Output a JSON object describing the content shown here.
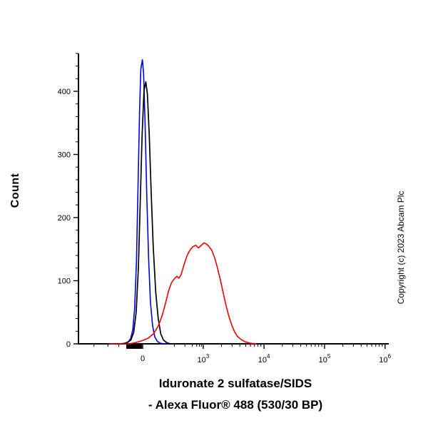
{
  "figure": {
    "background": "#ffffff",
    "y_axis_title": "Count",
    "x_axis_title_line1": "Iduronate 2 sulfatase/SIDS",
    "x_axis_title_line2": "- Alexa Fluor® 488 (530/30 BP)",
    "copyright": "Copyright (c) 2023 Abcam Plc"
  },
  "chart_data": {
    "type": "line",
    "subtype": "flow-cytometry-overlay-histogram",
    "title": "",
    "xlabel": "Iduronate 2 sulfatase/SIDS - Alexa Fluor® 488 (530/30 BP)",
    "ylabel": "Count",
    "x_scale": "biexponential-log",
    "x_axis_note": "x stored as fraction of axis width; calibration: 0 at frac 0.207, 1e3 at 0.402, 1e4 at 0.598, 1e5 at 0.793, 1e6 at 0.988",
    "ylim": [
      0,
      470
    ],
    "grid": false,
    "legend": "none",
    "y_ticks": {
      "major": [
        0,
        100,
        200,
        300,
        400
      ],
      "minor": [
        20,
        40,
        60,
        80,
        120,
        140,
        160,
        180,
        220,
        240,
        260,
        280,
        320,
        340,
        360,
        380,
        420,
        440,
        460
      ]
    },
    "x_ticks": {
      "major": [
        {
          "label": "0",
          "frac": 0.207
        },
        {
          "base": "10",
          "exp": "3",
          "frac": 0.402
        },
        {
          "base": "10",
          "exp": "4",
          "frac": 0.598
        },
        {
          "base": "10",
          "exp": "5",
          "frac": 0.793
        },
        {
          "base": "10",
          "exp": "6",
          "frac": 0.988
        }
      ],
      "minor": [
        0.05,
        0.095,
        0.13,
        0.309,
        0.343,
        0.367,
        0.381,
        0.39,
        0.396,
        0.461,
        0.495,
        0.52,
        0.539,
        0.554,
        0.567,
        0.578,
        0.588,
        0.657,
        0.691,
        0.716,
        0.735,
        0.75,
        0.763,
        0.774,
        0.784,
        0.852,
        0.886,
        0.911,
        0.93,
        0.945,
        0.958,
        0.969,
        0.979
      ],
      "cluster": {
        "from": 0.154,
        "to": 0.205
      }
    },
    "series": [
      {
        "name": "blue",
        "color": "#0000dd",
        "width": 1.6,
        "peak_count": 450,
        "points": [
          [
            0.1,
            0
          ],
          [
            0.135,
            0
          ],
          [
            0.15,
            1
          ],
          [
            0.16,
            3
          ],
          [
            0.168,
            8
          ],
          [
            0.175,
            22
          ],
          [
            0.181,
            55
          ],
          [
            0.187,
            130
          ],
          [
            0.192,
            250
          ],
          [
            0.197,
            370
          ],
          [
            0.201,
            435
          ],
          [
            0.206,
            450
          ],
          [
            0.21,
            428
          ],
          [
            0.215,
            345
          ],
          [
            0.22,
            238
          ],
          [
            0.226,
            136
          ],
          [
            0.232,
            66
          ],
          [
            0.239,
            28
          ],
          [
            0.246,
            11
          ],
          [
            0.254,
            4
          ],
          [
            0.263,
            1
          ],
          [
            0.275,
            0
          ],
          [
            0.32,
            0
          ]
        ]
      },
      {
        "name": "black",
        "color": "#000000",
        "width": 1.7,
        "peak_count": 415,
        "points": [
          [
            0.1,
            0
          ],
          [
            0.145,
            0
          ],
          [
            0.158,
            2
          ],
          [
            0.169,
            6
          ],
          [
            0.178,
            18
          ],
          [
            0.186,
            50
          ],
          [
            0.193,
            120
          ],
          [
            0.199,
            225
          ],
          [
            0.205,
            330
          ],
          [
            0.211,
            400
          ],
          [
            0.217,
            415
          ],
          [
            0.222,
            396
          ],
          [
            0.228,
            332
          ],
          [
            0.234,
            244
          ],
          [
            0.241,
            154
          ],
          [
            0.249,
            82
          ],
          [
            0.257,
            40
          ],
          [
            0.265,
            16
          ],
          [
            0.274,
            6
          ],
          [
            0.284,
            2
          ],
          [
            0.296,
            0
          ],
          [
            0.33,
            0
          ]
        ]
      },
      {
        "name": "red",
        "color": "#ee0000",
        "width": 1.6,
        "peak_count": 160,
        "points": [
          [
            0.1,
            0
          ],
          [
            0.165,
            0
          ],
          [
            0.185,
            2
          ],
          [
            0.205,
            5
          ],
          [
            0.225,
            9
          ],
          [
            0.242,
            16
          ],
          [
            0.257,
            28
          ],
          [
            0.27,
            45
          ],
          [
            0.281,
            65
          ],
          [
            0.291,
            85
          ],
          [
            0.3,
            97
          ],
          [
            0.309,
            103
          ],
          [
            0.317,
            107
          ],
          [
            0.324,
            104
          ],
          [
            0.331,
            110
          ],
          [
            0.34,
            125
          ],
          [
            0.35,
            140
          ],
          [
            0.36,
            149
          ],
          [
            0.369,
            154
          ],
          [
            0.378,
            156
          ],
          [
            0.387,
            152
          ],
          [
            0.396,
            156
          ],
          [
            0.405,
            160
          ],
          [
            0.413,
            158
          ],
          [
            0.421,
            154
          ],
          [
            0.43,
            148
          ],
          [
            0.439,
            136
          ],
          [
            0.448,
            120
          ],
          [
            0.457,
            102
          ],
          [
            0.466,
            82
          ],
          [
            0.475,
            62
          ],
          [
            0.484,
            45
          ],
          [
            0.493,
            31
          ],
          [
            0.502,
            20
          ],
          [
            0.512,
            12
          ],
          [
            0.524,
            7
          ],
          [
            0.538,
            3
          ],
          [
            0.553,
            1
          ],
          [
            0.572,
            0
          ]
        ]
      }
    ]
  }
}
